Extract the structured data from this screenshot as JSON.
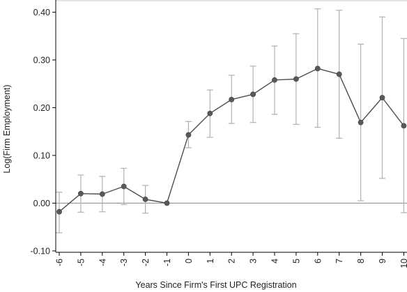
{
  "chart_data": {
    "type": "line",
    "xlabel": "Years Since Firm's First UPC Registration",
    "ylabel": "Log(Firm Employment)",
    "x": [
      -6,
      -5,
      -4,
      -3,
      -2,
      -1,
      0,
      1,
      2,
      3,
      4,
      5,
      6,
      7,
      8,
      9,
      10
    ],
    "ylim": [
      -0.1,
      0.4
    ],
    "xlim": [
      -6,
      10
    ],
    "yticks": [
      -0.1,
      0.0,
      0.1,
      0.2,
      0.3,
      0.4
    ],
    "ytick_labels": [
      "-0.10",
      "0.00",
      "0.10",
      "0.20",
      "0.30",
      "0.40"
    ],
    "xticks": [
      -6,
      -5,
      -4,
      -3,
      -2,
      -1,
      0,
      1,
      2,
      3,
      4,
      5,
      6,
      7,
      8,
      9,
      10
    ],
    "xtick_labels": [
      "-6",
      "-5",
      "-4",
      "-3",
      "-2",
      "-1",
      "0",
      "1",
      "2",
      "3",
      "4",
      "5",
      "6",
      "7",
      "8",
      "9",
      "10"
    ],
    "grid": false,
    "reference_line_y": 0.0,
    "series": [
      {
        "values": [
          -0.018,
          0.02,
          0.019,
          0.035,
          0.008,
          0.0,
          0.143,
          0.188,
          0.217,
          0.228,
          0.258,
          0.26,
          0.282,
          0.27,
          0.169,
          0.221,
          0.162
        ],
        "ci_low": [
          -0.062,
          -0.019,
          -0.018,
          -0.003,
          -0.021,
          0.0,
          0.116,
          0.138,
          0.167,
          0.169,
          0.186,
          0.165,
          0.159,
          0.136,
          0.005,
          0.052,
          -0.02
        ],
        "ci_high": [
          0.023,
          0.059,
          0.056,
          0.073,
          0.037,
          0.0,
          0.171,
          0.237,
          0.268,
          0.287,
          0.329,
          0.355,
          0.407,
          0.404,
          0.333,
          0.39,
          0.345
        ]
      }
    ],
    "colors": {
      "line": "#4d4d4d",
      "marker": "#595959",
      "error_bar": "#b0b0b0",
      "reference_line": "#8c8c8c",
      "axis": "#000000",
      "frame": "#c8c8c8"
    }
  }
}
